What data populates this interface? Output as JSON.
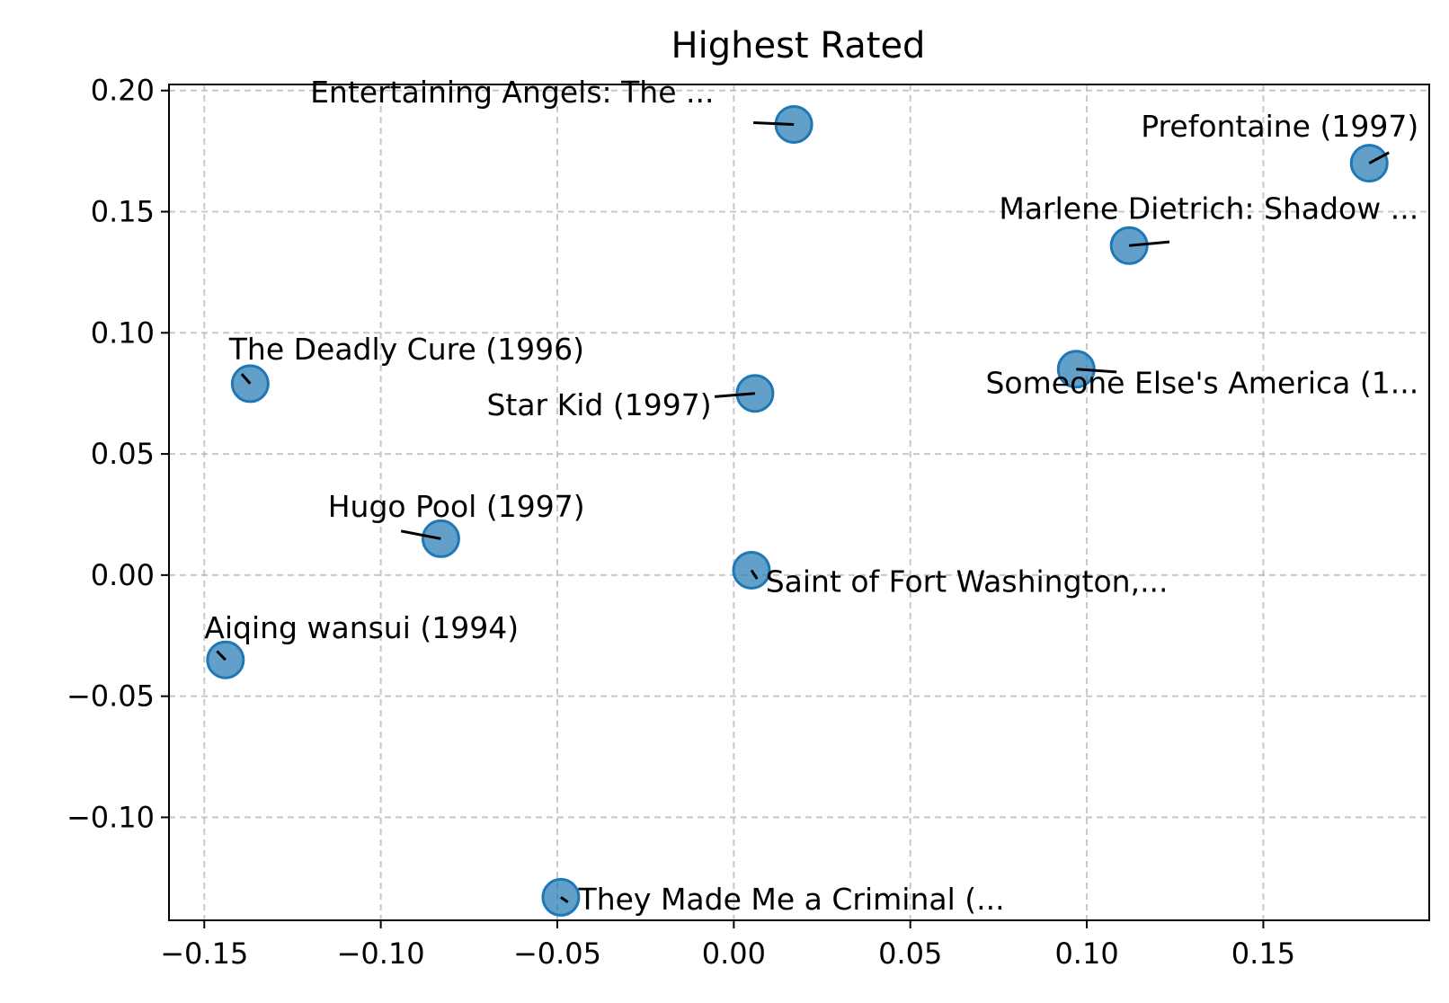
{
  "chart_data": {
    "type": "scatter",
    "title": "Highest Rated",
    "xlabel": "",
    "ylabel": "",
    "xlim": [
      -0.16,
      0.197
    ],
    "ylim": [
      -0.1425,
      0.2025
    ],
    "xticks": [
      -0.15,
      -0.1,
      -0.05,
      0.0,
      0.05,
      0.1,
      0.15
    ],
    "xtick_labels": [
      "−0.15",
      "−0.10",
      "−0.05",
      "0.00",
      "0.05",
      "0.10",
      "0.15"
    ],
    "yticks": [
      -0.1,
      -0.05,
      0.0,
      0.05,
      0.1,
      0.15,
      0.2
    ],
    "ytick_labels": [
      "−0.10",
      "−0.05",
      "0.00",
      "0.05",
      "0.10",
      "0.15",
      "0.20"
    ],
    "grid": true,
    "marker_color": "#1f77b4",
    "points": [
      {
        "x": 0.017,
        "y": 0.186,
        "label": "Entertaining Angels: The ...",
        "lx": -0.12,
        "ly": 0.195,
        "anchor": "start"
      },
      {
        "x": 0.18,
        "y": 0.17,
        "label": "Prefontaine (1997)",
        "lx": 0.194,
        "ly": 0.181,
        "anchor": "end"
      },
      {
        "x": 0.112,
        "y": 0.136,
        "label": "Marlene Dietrich: Shadow ...",
        "lx": 0.194,
        "ly": 0.147,
        "anchor": "end"
      },
      {
        "x": -0.137,
        "y": 0.079,
        "label": "The Deadly Cure (1996)",
        "lx": -0.143,
        "ly": 0.089,
        "anchor": "start"
      },
      {
        "x": 0.006,
        "y": 0.075,
        "label": "Star Kid (1997)",
        "lx": -0.07,
        "ly": 0.066,
        "anchor": "start"
      },
      {
        "x": 0.097,
        "y": 0.085,
        "label": "Someone Else's America (1...",
        "lx": 0.194,
        "ly": 0.075,
        "anchor": "end"
      },
      {
        "x": -0.083,
        "y": 0.015,
        "label": "Hugo Pool (1997)",
        "lx": -0.115,
        "ly": 0.024,
        "anchor": "start"
      },
      {
        "x": 0.005,
        "y": 0.002,
        "label": "Saint of Fort Washington,...",
        "lx": 0.009,
        "ly": -0.007,
        "anchor": "start"
      },
      {
        "x": -0.144,
        "y": -0.035,
        "label": "Aiqing wansui (1994)",
        "lx": -0.15,
        "ly": -0.026,
        "anchor": "start"
      },
      {
        "x": -0.049,
        "y": -0.133,
        "label": "They Made Me a Criminal (...",
        "lx": -0.044,
        "ly": -0.138,
        "anchor": "start"
      }
    ]
  }
}
